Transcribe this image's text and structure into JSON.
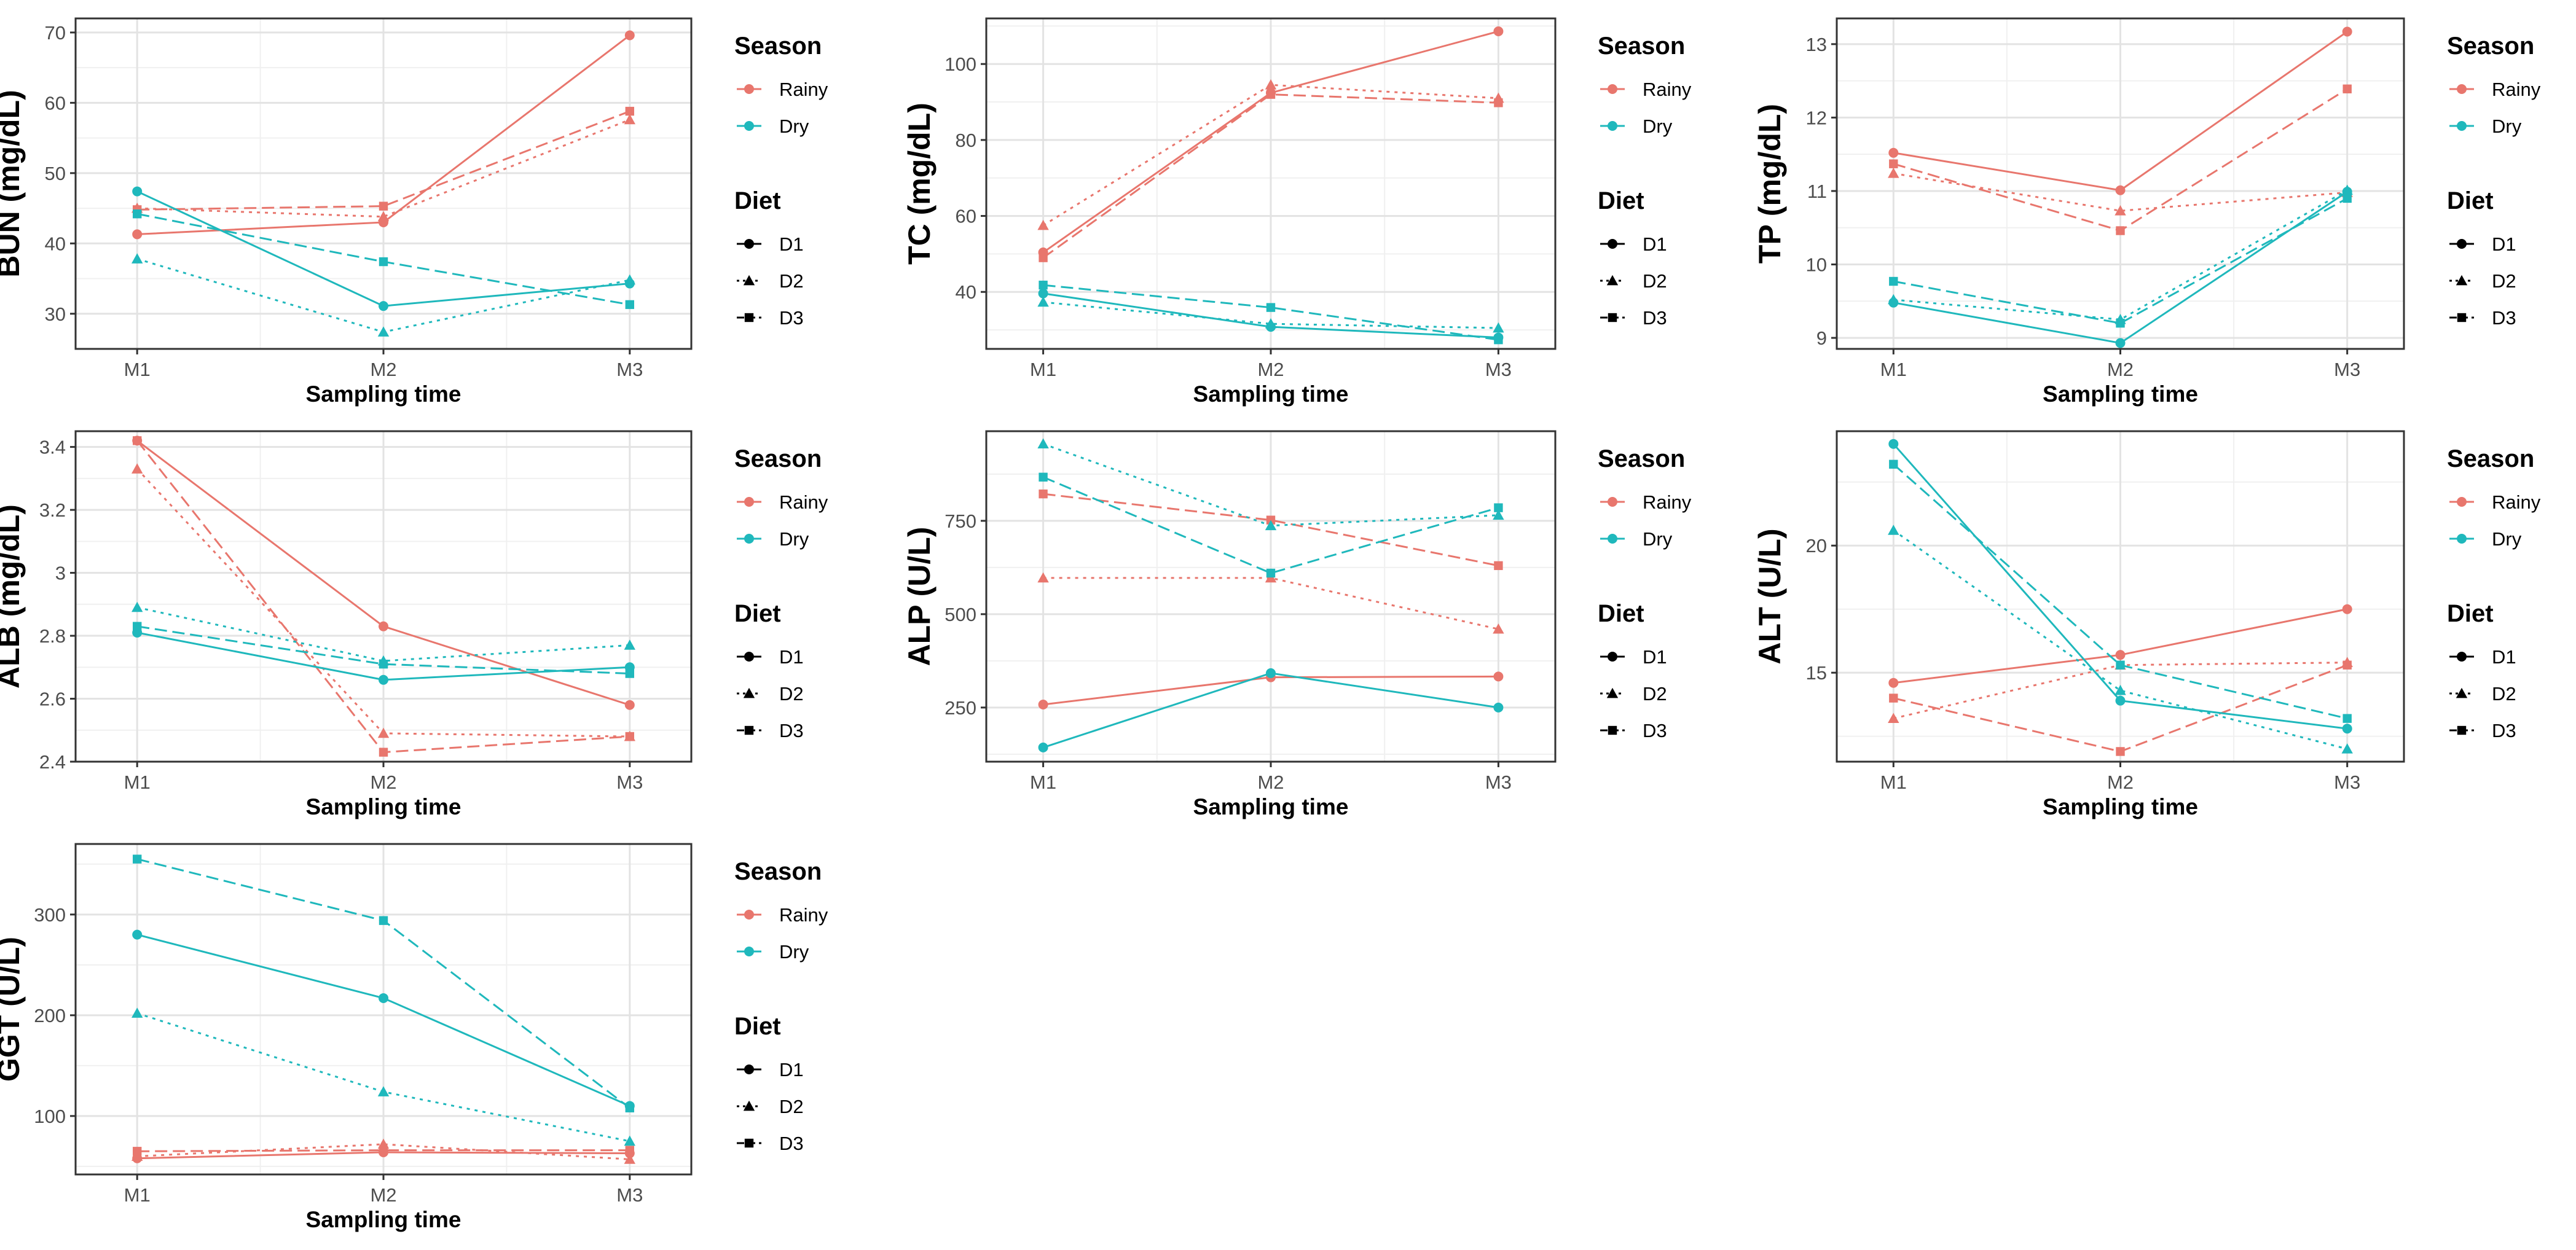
{
  "colors": {
    "Rainy": "#E8766D",
    "Dry": "#1FB8BC"
  },
  "legend": {
    "season_title": "Season",
    "season_items": [
      "Rainy",
      "Dry"
    ],
    "diet_title": "Diet",
    "diet_items": [
      "D1",
      "D2",
      "D3"
    ]
  },
  "chart_data": [
    {
      "id": "bun",
      "type": "line",
      "ylabel": "BUN (mg/dL)",
      "xlabel": "Sampling time",
      "categories": [
        "M1",
        "M2",
        "M3"
      ],
      "ylim": [
        25,
        72
      ],
      "yticks": [
        30,
        40,
        50,
        60,
        70
      ],
      "series": [
        {
          "season": "Rainy",
          "diet": "D1",
          "values": [
            41.3,
            43.0,
            69.6
          ]
        },
        {
          "season": "Rainy",
          "diet": "D2",
          "values": [
            45.0,
            43.8,
            57.6
          ]
        },
        {
          "season": "Rainy",
          "diet": "D3",
          "values": [
            44.8,
            45.3,
            58.8
          ]
        },
        {
          "season": "Dry",
          "diet": "D1",
          "values": [
            47.4,
            31.1,
            34.3
          ]
        },
        {
          "season": "Dry",
          "diet": "D2",
          "values": [
            37.8,
            27.4,
            34.8
          ]
        },
        {
          "season": "Dry",
          "diet": "D3",
          "values": [
            44.2,
            37.4,
            31.3
          ]
        }
      ]
    },
    {
      "id": "tc",
      "type": "line",
      "ylabel": "TC (mg/dL)",
      "xlabel": "Sampling time",
      "categories": [
        "M1",
        "M2",
        "M3"
      ],
      "ylim": [
        25,
        112
      ],
      "yticks": [
        40,
        60,
        80,
        100
      ],
      "series": [
        {
          "season": "Rainy",
          "diet": "D1",
          "values": [
            50.4,
            92.4,
            108.6
          ]
        },
        {
          "season": "Rainy",
          "diet": "D2",
          "values": [
            57.5,
            94.5,
            91.0
          ]
        },
        {
          "season": "Rainy",
          "diet": "D3",
          "values": [
            49.0,
            92.0,
            89.8
          ]
        },
        {
          "season": "Dry",
          "diet": "D1",
          "values": [
            39.6,
            30.8,
            28.0
          ]
        },
        {
          "season": "Dry",
          "diet": "D2",
          "values": [
            37.3,
            31.6,
            30.5
          ]
        },
        {
          "season": "Dry",
          "diet": "D3",
          "values": [
            41.8,
            35.9,
            27.4
          ]
        }
      ]
    },
    {
      "id": "tp",
      "type": "line",
      "ylabel": "TP (mg/dL)",
      "xlabel": "Sampling time",
      "categories": [
        "M1",
        "M2",
        "M3"
      ],
      "ylim": [
        8.85,
        13.35
      ],
      "yticks": [
        9,
        10,
        11,
        12,
        13
      ],
      "series": [
        {
          "season": "Rainy",
          "diet": "D1",
          "values": [
            11.52,
            11.01,
            13.17
          ]
        },
        {
          "season": "Rainy",
          "diet": "D2",
          "values": [
            11.24,
            10.73,
            10.98
          ]
        },
        {
          "season": "Rainy",
          "diet": "D3",
          "values": [
            11.37,
            10.46,
            12.39
          ]
        },
        {
          "season": "Dry",
          "diet": "D1",
          "values": [
            9.48,
            8.93,
            10.99
          ]
        },
        {
          "season": "Dry",
          "diet": "D2",
          "values": [
            9.52,
            9.25,
            11.01
          ]
        },
        {
          "season": "Dry",
          "diet": "D3",
          "values": [
            9.77,
            9.2,
            10.9
          ]
        }
      ]
    },
    {
      "id": "alb",
      "type": "line",
      "ylabel": "ALB (mg/dL)",
      "xlabel": "Sampling time",
      "categories": [
        "M1",
        "M2",
        "M3"
      ],
      "ylim": [
        2.4,
        3.45
      ],
      "yticks": [
        2.4,
        2.6,
        2.8,
        3.0,
        3.2,
        3.4
      ],
      "series": [
        {
          "season": "Rainy",
          "diet": "D1",
          "values": [
            3.42,
            2.83,
            2.58
          ]
        },
        {
          "season": "Rainy",
          "diet": "D2",
          "values": [
            3.33,
            2.49,
            2.48
          ]
        },
        {
          "season": "Rainy",
          "diet": "D3",
          "values": [
            3.42,
            2.43,
            2.48
          ]
        },
        {
          "season": "Dry",
          "diet": "D1",
          "values": [
            2.81,
            2.66,
            2.7
          ]
        },
        {
          "season": "Dry",
          "diet": "D2",
          "values": [
            2.89,
            2.72,
            2.77
          ]
        },
        {
          "season": "Dry",
          "diet": "D3",
          "values": [
            2.83,
            2.71,
            2.68
          ]
        }
      ]
    },
    {
      "id": "alp",
      "type": "line",
      "ylabel": "ALP (U/L)",
      "xlabel": "Sampling time",
      "categories": [
        "M1",
        "M2",
        "M3"
      ],
      "ylim": [
        105,
        990
      ],
      "yticks": [
        250,
        500,
        750
      ],
      "series": [
        {
          "season": "Rainy",
          "diet": "D1",
          "values": [
            258,
            331,
            333
          ]
        },
        {
          "season": "Rainy",
          "diet": "D2",
          "values": [
            597,
            597,
            460
          ]
        },
        {
          "season": "Rainy",
          "diet": "D3",
          "values": [
            822,
            752,
            630
          ]
        },
        {
          "season": "Dry",
          "diet": "D1",
          "values": [
            143,
            342,
            250
          ]
        },
        {
          "season": "Dry",
          "diet": "D2",
          "values": [
            956,
            737,
            765
          ]
        },
        {
          "season": "Dry",
          "diet": "D3",
          "values": [
            867,
            610,
            785
          ]
        }
      ]
    },
    {
      "id": "alt",
      "type": "line",
      "ylabel": "ALT (U/L)",
      "xlabel": "Sampling time",
      "categories": [
        "M1",
        "M2",
        "M3"
      ],
      "ylim": [
        11.5,
        24.5
      ],
      "yticks": [
        15,
        20
      ],
      "series": [
        {
          "season": "Rainy",
          "diet": "D1",
          "values": [
            14.6,
            15.7,
            17.5
          ]
        },
        {
          "season": "Rainy",
          "diet": "D2",
          "values": [
            13.2,
            15.3,
            15.4
          ]
        },
        {
          "season": "Rainy",
          "diet": "D3",
          "values": [
            14.0,
            11.9,
            15.3
          ]
        },
        {
          "season": "Dry",
          "diet": "D1",
          "values": [
            24.0,
            13.9,
            12.8
          ]
        },
        {
          "season": "Dry",
          "diet": "D2",
          "values": [
            20.6,
            14.3,
            12.0
          ]
        },
        {
          "season": "Dry",
          "diet": "D3",
          "values": [
            23.2,
            15.3,
            13.2
          ]
        }
      ]
    },
    {
      "id": "ggt",
      "type": "line",
      "ylabel": "GGT (U/L)",
      "xlabel": "Sampling time",
      "categories": [
        "M1",
        "M2",
        "M3"
      ],
      "ylim": [
        42,
        370
      ],
      "yticks": [
        100,
        200,
        300
      ],
      "series": [
        {
          "season": "Rainy",
          "diet": "D1",
          "values": [
            58,
            64,
            63
          ]
        },
        {
          "season": "Rainy",
          "diet": "D2",
          "values": [
            60,
            72,
            57
          ]
        },
        {
          "season": "Rainy",
          "diet": "D3",
          "values": [
            65,
            66,
            66
          ]
        },
        {
          "season": "Dry",
          "diet": "D1",
          "values": [
            280,
            217,
            110
          ]
        },
        {
          "season": "Dry",
          "diet": "D2",
          "values": [
            202,
            124,
            75
          ]
        },
        {
          "season": "Dry",
          "diet": "D3",
          "values": [
            355,
            294,
            108
          ]
        }
      ]
    }
  ]
}
